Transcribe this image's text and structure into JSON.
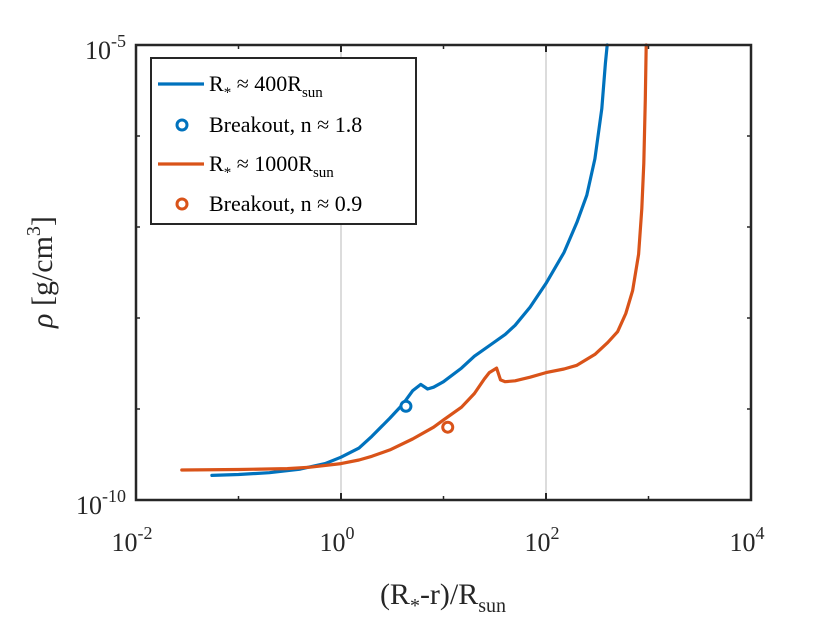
{
  "chart_data": {
    "type": "line",
    "x_scale": "log",
    "y_scale": "log",
    "xlim": [
      0.01,
      10000
    ],
    "ylim_exponent": [
      -10,
      -5
    ],
    "x_ticks": [
      {
        "value": 0.01,
        "base": "10",
        "exp": "-2"
      },
      {
        "value": 1,
        "base": "10",
        "exp": "0"
      },
      {
        "value": 100,
        "base": "10",
        "exp": "2"
      },
      {
        "value": 10000,
        "base": "10",
        "exp": "4"
      }
    ],
    "y_ticks": [
      {
        "exponent": -5,
        "base": "10",
        "exp": "-5"
      },
      {
        "exponent": -10,
        "base": "10",
        "exp": "-10"
      }
    ],
    "grid_x": [
      1,
      100
    ],
    "xlabel": {
      "a": "(R",
      "sub1": "*",
      "b": "-r)/R",
      "sub2": "sun"
    },
    "ylabel": {
      "sym": "ρ",
      "a": " [g/cm",
      "sup": "3",
      "b": "]"
    },
    "legend_position": "top-left",
    "series": [
      {
        "name": "R* ≈ 400Rsun",
        "color": "#0072BD",
        "points": [
          [
            0.055,
            -9.73
          ],
          [
            0.1,
            -9.72
          ],
          [
            0.2,
            -9.7
          ],
          [
            0.4,
            -9.66
          ],
          [
            0.7,
            -9.6
          ],
          [
            1.0,
            -9.53
          ],
          [
            1.5,
            -9.43
          ],
          [
            2.0,
            -9.3
          ],
          [
            3.0,
            -9.1
          ],
          [
            4.0,
            -8.95
          ],
          [
            5.0,
            -8.8
          ],
          [
            6.0,
            -8.73
          ],
          [
            7.0,
            -8.78
          ],
          [
            8.0,
            -8.76
          ],
          [
            10.0,
            -8.7
          ],
          [
            15.0,
            -8.55
          ],
          [
            20.0,
            -8.42
          ],
          [
            30.0,
            -8.28
          ],
          [
            40.0,
            -8.18
          ],
          [
            50.0,
            -8.08
          ],
          [
            70.0,
            -7.88
          ],
          [
            100.0,
            -7.62
          ],
          [
            150.0,
            -7.28
          ],
          [
            200.0,
            -6.95
          ],
          [
            250.0,
            -6.65
          ],
          [
            300.0,
            -6.25
          ],
          [
            350.0,
            -5.7
          ],
          [
            380.0,
            -5.2
          ],
          [
            395.0,
            -5.0
          ]
        ]
      },
      {
        "name": "R* ≈ 1000Rsun",
        "color": "#D95319",
        "points": [
          [
            0.028,
            -9.67
          ],
          [
            0.1,
            -9.665
          ],
          [
            0.3,
            -9.655
          ],
          [
            0.5,
            -9.64
          ],
          [
            1.0,
            -9.6
          ],
          [
            1.5,
            -9.56
          ],
          [
            2.0,
            -9.52
          ],
          [
            3.0,
            -9.45
          ],
          [
            5.0,
            -9.33
          ],
          [
            8.0,
            -9.2
          ],
          [
            10.0,
            -9.12
          ],
          [
            15.0,
            -8.98
          ],
          [
            20.0,
            -8.83
          ],
          [
            25.0,
            -8.67
          ],
          [
            28.0,
            -8.6
          ],
          [
            33.0,
            -8.55
          ],
          [
            36.0,
            -8.68
          ],
          [
            40.0,
            -8.7
          ],
          [
            50.0,
            -8.69
          ],
          [
            70.0,
            -8.65
          ],
          [
            100.0,
            -8.6
          ],
          [
            150.0,
            -8.56
          ],
          [
            200.0,
            -8.52
          ],
          [
            300.0,
            -8.4
          ],
          [
            400.0,
            -8.27
          ],
          [
            500.0,
            -8.15
          ],
          [
            600.0,
            -7.95
          ],
          [
            700.0,
            -7.7
          ],
          [
            800.0,
            -7.3
          ],
          [
            860.0,
            -6.8
          ],
          [
            900.0,
            -6.3
          ],
          [
            930.0,
            -5.6
          ],
          [
            950.0,
            -5.0
          ]
        ]
      }
    ],
    "markers": [
      {
        "name": "Breakout, n ≈ 1.8",
        "color": "#0072BD",
        "x": 4.3,
        "y_exp": -8.97
      },
      {
        "name": "Breakout, n ≈ 0.9",
        "color": "#D95319",
        "x": 11.0,
        "y_exp": -9.2
      }
    ],
    "legend": [
      {
        "kind": "line",
        "color": "#0072BD",
        "main": "R",
        "sub1": "*",
        "mid": " ≈ 400R",
        "sub2": "sun"
      },
      {
        "kind": "marker",
        "color": "#0072BD",
        "text": "Breakout, n ≈ 1.8"
      },
      {
        "kind": "line",
        "color": "#D95319",
        "main": "R",
        "sub1": "*",
        "mid": " ≈ 1000R",
        "sub2": "sun"
      },
      {
        "kind": "marker",
        "color": "#D95319",
        "text": "Breakout, n ≈ 0.9"
      }
    ]
  }
}
